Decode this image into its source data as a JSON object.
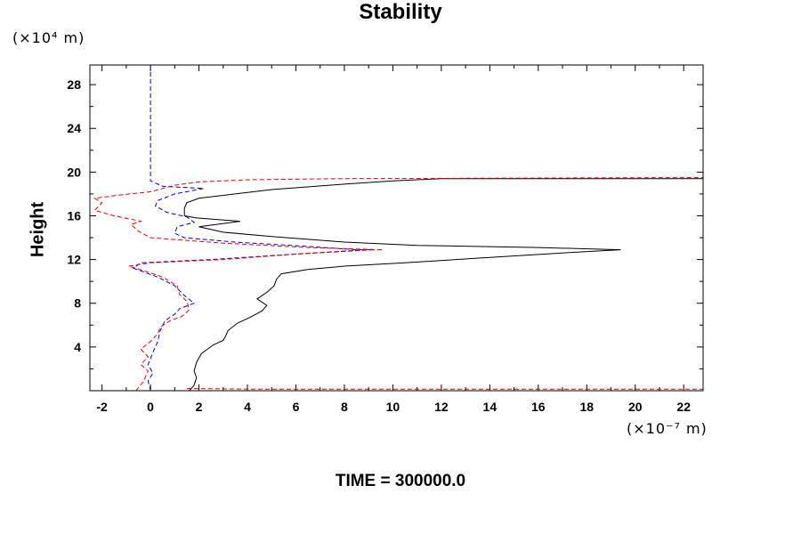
{
  "chart_data": {
    "type": "line",
    "title": "Stability",
    "ylabel": "Height",
    "y_unit": "(×10⁴ m)",
    "x_unit": "(×10⁻⁷ m)",
    "xlim": [
      -2.5,
      22.8
    ],
    "ylim": [
      0,
      29.8
    ],
    "x_ticks": [
      -2,
      0,
      2,
      4,
      6,
      8,
      10,
      12,
      14,
      16,
      18,
      20,
      22
    ],
    "y_ticks": [
      4,
      8,
      12,
      16,
      20,
      24,
      28
    ],
    "series": [
      {
        "color": "#000000",
        "style": "solid",
        "points": [
          [
            1.6,
            0
          ],
          [
            1.8,
            0.5
          ],
          [
            1.9,
            1.2
          ],
          [
            1.8,
            1.8
          ],
          [
            1.9,
            2.6
          ],
          [
            2.1,
            3.4
          ],
          [
            2.6,
            4.2
          ],
          [
            3.0,
            4.6
          ],
          [
            3.1,
            5.0
          ],
          [
            3.2,
            5.5
          ],
          [
            3.6,
            6.2
          ],
          [
            4.1,
            6.7
          ],
          [
            4.6,
            7.3
          ],
          [
            4.8,
            7.8
          ],
          [
            4.4,
            8.4
          ],
          [
            4.8,
            9.0
          ],
          [
            5.1,
            9.6
          ],
          [
            5.2,
            10.2
          ],
          [
            5.4,
            10.7
          ],
          [
            6.5,
            11.1
          ],
          [
            8.0,
            11.4
          ],
          [
            10.5,
            11.7
          ],
          [
            14.0,
            12.2
          ],
          [
            17.0,
            12.6
          ],
          [
            19.4,
            12.9
          ],
          [
            16.0,
            13.1
          ],
          [
            11.0,
            13.3
          ],
          [
            8.0,
            13.6
          ],
          [
            5.0,
            14.1
          ],
          [
            3.0,
            14.5
          ],
          [
            2.0,
            15.0
          ],
          [
            3.7,
            15.5
          ],
          [
            1.9,
            15.8
          ],
          [
            1.4,
            16.0
          ],
          [
            1.4,
            16.7
          ],
          [
            1.5,
            17.2
          ],
          [
            2.0,
            17.6
          ],
          [
            3.5,
            18.0
          ],
          [
            5.0,
            18.4
          ],
          [
            8.0,
            18.9
          ],
          [
            10.0,
            19.2
          ],
          [
            12.0,
            19.4
          ],
          [
            22.8,
            19.4
          ]
        ]
      },
      {
        "color": "#0000cc",
        "style": "dashed",
        "points": [
          [
            0.0,
            29.8
          ],
          [
            0.0,
            20.0
          ],
          [
            0.0,
            19.2
          ],
          [
            0.5,
            18.7
          ],
          [
            2.2,
            18.5
          ],
          [
            1.0,
            18.0
          ],
          [
            0.3,
            17.4
          ],
          [
            0.2,
            16.9
          ],
          [
            0.7,
            16.3
          ],
          [
            1.5,
            15.9
          ],
          [
            1.8,
            15.4
          ],
          [
            1.1,
            15.0
          ],
          [
            1.0,
            14.4
          ],
          [
            1.4,
            14.0
          ],
          [
            3.5,
            13.6
          ],
          [
            6.5,
            13.2
          ],
          [
            8.5,
            12.9
          ],
          [
            9.2,
            12.9
          ],
          [
            6.0,
            12.5
          ],
          [
            2.5,
            12.0
          ],
          [
            -0.4,
            11.7
          ],
          [
            -0.7,
            11.2
          ],
          [
            0.3,
            10.4
          ],
          [
            1.0,
            9.6
          ],
          [
            1.4,
            8.7
          ],
          [
            1.8,
            8.0
          ],
          [
            1.2,
            7.5
          ],
          [
            1.0,
            7.0
          ],
          [
            0.6,
            6.4
          ],
          [
            0.4,
            5.5
          ],
          [
            0.3,
            4.5
          ],
          [
            0.1,
            3.5
          ],
          [
            -0.1,
            2.4
          ],
          [
            0.1,
            1.6
          ],
          [
            -0.1,
            0.9
          ],
          [
            0.0,
            0
          ]
        ]
      },
      {
        "color": "#ee0000",
        "style": "dashed",
        "points": [
          [
            -0.6,
            0
          ],
          [
            -0.3,
            0.8
          ],
          [
            -0.1,
            1.8
          ],
          [
            -0.4,
            2.4
          ],
          [
            -0.1,
            3.1
          ],
          [
            -0.4,
            3.8
          ],
          [
            0.0,
            4.5
          ],
          [
            0.3,
            5.2
          ],
          [
            0.4,
            5.8
          ],
          [
            0.8,
            6.4
          ],
          [
            1.3,
            6.8
          ],
          [
            1.6,
            7.4
          ],
          [
            1.5,
            8.2
          ],
          [
            1.2,
            8.8
          ],
          [
            1.1,
            9.6
          ],
          [
            0.5,
            10.4
          ],
          [
            -0.3,
            11.0
          ],
          [
            -0.9,
            11.4
          ],
          [
            0.0,
            11.7
          ],
          [
            3.0,
            12.0
          ],
          [
            6.0,
            12.5
          ],
          [
            8.8,
            12.9
          ],
          [
            9.6,
            12.9
          ],
          [
            6.5,
            13.1
          ],
          [
            3.0,
            13.5
          ],
          [
            0.0,
            14.0
          ],
          [
            -0.5,
            14.6
          ],
          [
            -0.8,
            15.2
          ],
          [
            -0.4,
            15.5
          ],
          [
            -1.5,
            16.0
          ],
          [
            -2.3,
            16.5
          ],
          [
            -2.0,
            17.2
          ],
          [
            -2.3,
            17.6
          ],
          [
            -1.3,
            17.9
          ],
          [
            0.0,
            18.2
          ],
          [
            1.0,
            18.8
          ],
          [
            2.0,
            19.1
          ],
          [
            4.0,
            19.3
          ],
          [
            8.0,
            19.4
          ],
          [
            22.8,
            19.5
          ]
        ]
      },
      {
        "color": "#ee0000",
        "style": "dashed",
        "points": [
          [
            1.5,
            0.2
          ],
          [
            4.0,
            0.15
          ],
          [
            22.8,
            0.15
          ]
        ]
      }
    ]
  },
  "footer_text": "TIME = 300000.0"
}
